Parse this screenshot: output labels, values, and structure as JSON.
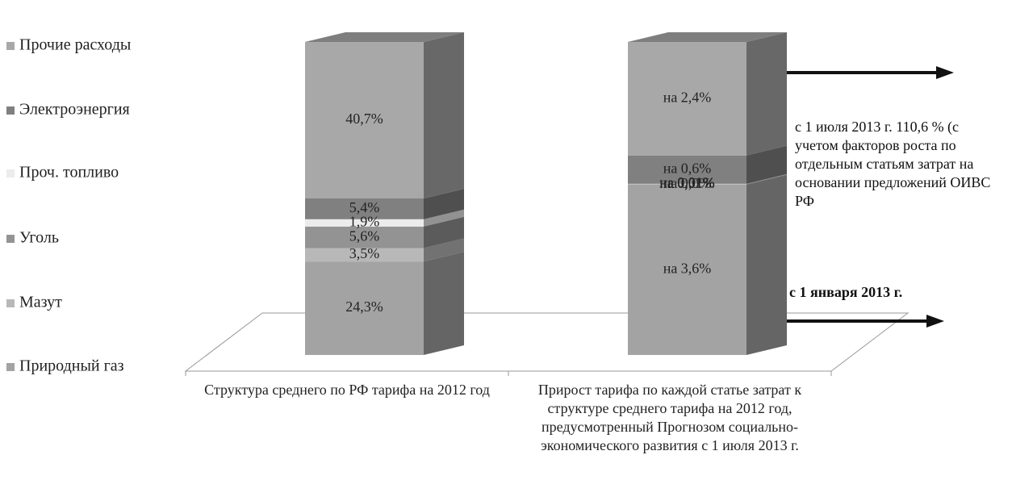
{
  "chart_data": {
    "type": "bar3d",
    "stack": "percent",
    "categories": [
      "Структура среднего по РФ тарифа на 2012 год",
      "Прирост тарифа по каждой статье затрат к структуре среднего тарифа на 2012 год, предусмотренный Прогнозом социально-экономического развития с 1 июля 2013 г."
    ],
    "series": [
      {
        "name": "Природный газ",
        "color": "#a3a3a3",
        "values": [
          24.3,
          3.6
        ],
        "value_labels": [
          "24,3%",
          "на 3,6%"
        ]
      },
      {
        "name": "Мазут",
        "color": "#b8b8b8",
        "values": [
          3.5,
          0.0
        ],
        "value_labels": [
          "3,5%",
          "на 0,0%"
        ]
      },
      {
        "name": "Уголь",
        "color": "#939393",
        "values": [
          5.6,
          0.01
        ],
        "value_labels": [
          "5,6%",
          "на 0,01%"
        ]
      },
      {
        "name": "Проч. топливо",
        "color": "#ececec",
        "values": [
          1.9,
          0.01
        ],
        "value_labels": [
          "1,9%",
          "на 0,01%"
        ]
      },
      {
        "name": "Электроэнергия",
        "color": "#808080",
        "values": [
          5.4,
          0.6
        ],
        "value_labels": [
          "5,4%",
          "на 0,6%"
        ]
      },
      {
        "name": "Прочие расходы",
        "color": "#a8a8a8",
        "values": [
          40.7,
          2.4
        ],
        "value_labels": [
          "40,7%",
          "на 2,4%"
        ]
      }
    ],
    "annotations": [
      "с 1 июля 2013 г. 110,6 % (с учетом факторов роста по отдельным статьям затрат на основании предложений ОИВС РФ",
      "с 1 января 2013 г."
    ]
  }
}
